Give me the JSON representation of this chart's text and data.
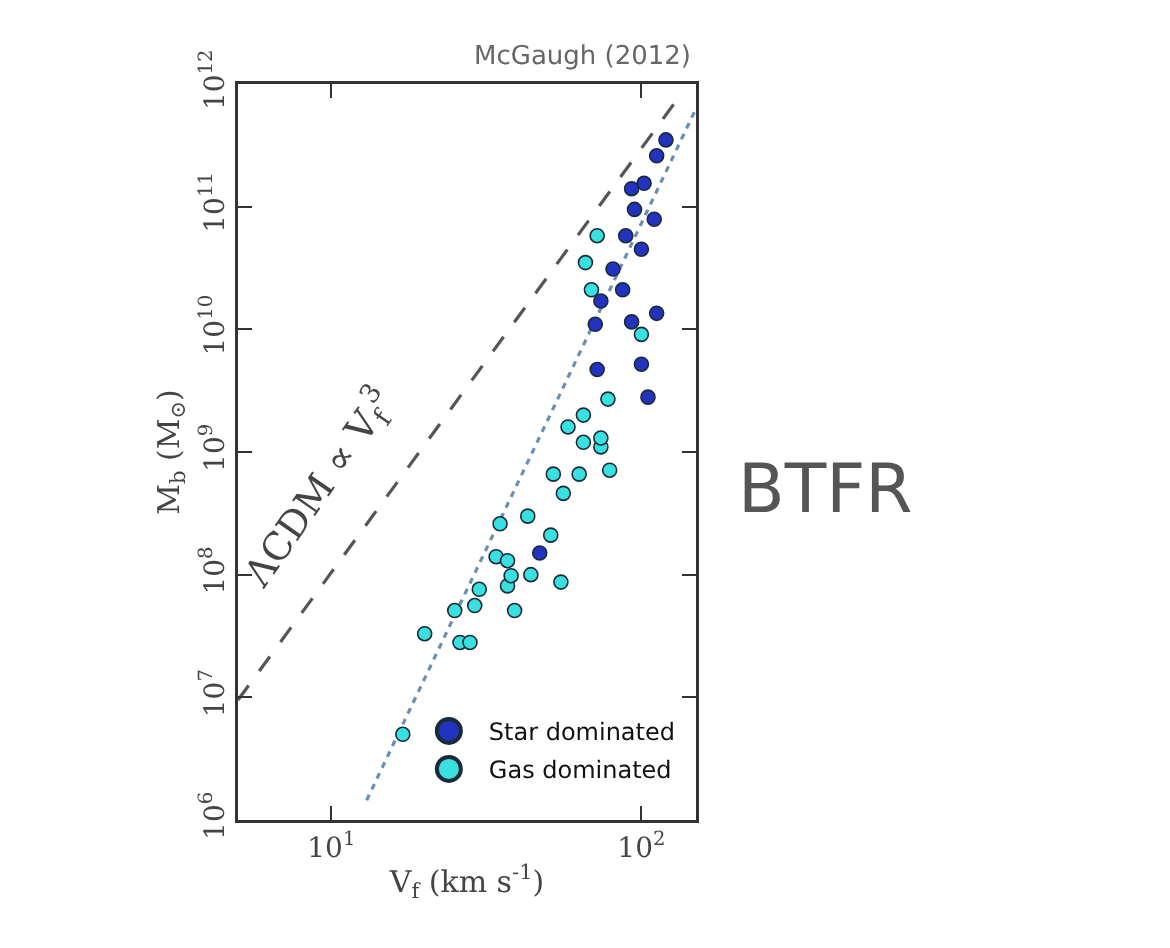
{
  "chart_data": {
    "type": "scatter",
    "xlabel": "V$_{f}$ (km s$^{-1}$)",
    "ylabel": "M$_{b}$ (M$_{⊙}$)",
    "log": "xy",
    "grid": false,
    "legend": "bottom right",
    "marker": "circle",
    "xlim": [
      5,
      150
    ],
    "ylim": [
      1000000,
      1000000000000
    ],
    "xticks": [
      {
        "value": 10,
        "label": "10$^{1}$"
      },
      {
        "value": 100,
        "label": "10$^{2}$"
      }
    ],
    "yticks": [
      {
        "value": 1000000,
        "label": "10$^{6}$"
      },
      {
        "value": 10000000,
        "label": "10$^{7}$"
      },
      {
        "value": 100000000,
        "label": "10$^{8}$"
      },
      {
        "value": 1000000000,
        "label": "10$^{9}$"
      },
      {
        "value": 10000000000,
        "label": "10$^{10}$"
      },
      {
        "value": 100000000000,
        "label": "10$^{11}$"
      },
      {
        "value": 1000000000000,
        "label": "10$^{12}$"
      }
    ],
    "series": [
      {
        "type": "line",
        "marker": "none",
        "line_style": "dashed",
        "color": "#555555",
        "x": [
          5,
          130
        ],
        "values": [
          9500000,
          740000000000
        ]
      },
      {
        "type": "line",
        "marker": "none",
        "line_style": "dotted",
        "color": "#6a8fb0",
        "x": [
          13,
          150
        ],
        "values": [
          1450000,
          630000000000
        ]
      },
      {
        "name": "Star dominated",
        "color": "#2233c0",
        "x": [
          47,
          93,
          112,
          72,
          100,
          105,
          120,
          112,
          102,
          95,
          89,
          100,
          81,
          87,
          74,
          71,
          110,
          93
        ],
        "values": [
          150000000,
          11500000000,
          13500000000,
          4700000000,
          5200000000,
          2800000000,
          350000000000,
          260000000000,
          155000000000,
          95000000000,
          58000000000,
          45000000000,
          31000000000,
          21000000000,
          17000000000,
          11000000000,
          79000000000,
          140000000000
        ]
      },
      {
        "name": "Gas dominated",
        "color": "#38e0e0",
        "x": [
          17,
          20,
          26,
          28,
          25,
          29,
          30,
          37,
          39,
          44,
          55,
          38,
          34,
          37,
          35,
          43,
          51,
          52,
          56,
          63,
          79,
          65,
          74,
          100,
          65,
          78,
          58,
          74,
          72,
          66,
          69
        ],
        "values": [
          5000000,
          33000000,
          28000000,
          28000000,
          51000000,
          56000000,
          76000000,
          81000000,
          51000000,
          100000000,
          87000000,
          98000000,
          140000000,
          130000000,
          260000000,
          300000000,
          210000000,
          660000000,
          460000000,
          660000000,
          710000000,
          1200000000,
          1100000000,
          9100000000,
          2000000000,
          2700000000,
          1600000000,
          1300000000,
          58000000000,
          35000000000,
          21000000000
        ]
      }
    ],
    "annotations": [
      "ΛCDM ∝ V$_{f}$$^{3}$",
      "McGaugh (2012)",
      "BTFR"
    ]
  }
}
